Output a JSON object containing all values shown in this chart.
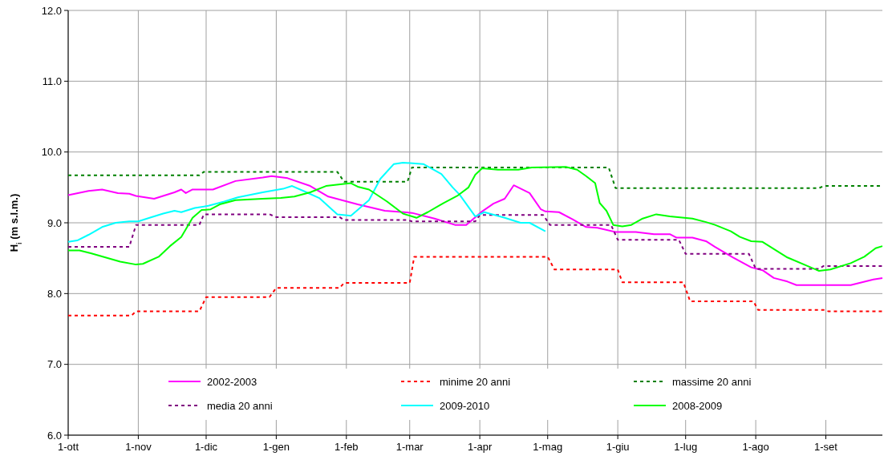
{
  "chart_data": {
    "type": "line",
    "ylabel": "H$_{i}$  (m s.l.m.)",
    "xlim": [
      "2002-10-01",
      "2003-09-26"
    ],
    "xticks": [
      {
        "value": "2002-10-01",
        "label": "1-ott"
      },
      {
        "value": "2002-11-01",
        "label": "1-nov"
      },
      {
        "value": "2002-12-01",
        "label": "1-dic"
      },
      {
        "value": "2003-01-01",
        "label": "1-gen"
      },
      {
        "value": "2003-02-01",
        "label": "1-feb"
      },
      {
        "value": "2003-03-01",
        "label": "1-mar"
      },
      {
        "value": "2003-04-01",
        "label": "1-apr"
      },
      {
        "value": "2003-05-01",
        "label": "1-mag"
      },
      {
        "value": "2003-06-01",
        "label": "1-giu"
      },
      {
        "value": "2003-07-01",
        "label": "1-lug"
      },
      {
        "value": "2003-08-01",
        "label": "1-ago"
      },
      {
        "value": "2003-09-01",
        "label": "1-set"
      }
    ],
    "ylim": [
      6,
      12
    ],
    "yticks": [
      {
        "value": 6,
        "label": "6.0"
      },
      {
        "value": 7,
        "label": "7.0"
      },
      {
        "value": 8,
        "label": "8.0"
      },
      {
        "value": 9,
        "label": "9.0"
      },
      {
        "value": 10,
        "label": "10.0"
      },
      {
        "value": 11,
        "label": "11.0"
      },
      {
        "value": 12,
        "label": "12.0"
      }
    ],
    "grid": true,
    "legend": "bottom",
    "marker": "none",
    "series": [
      {
        "name": "2002-2003",
        "color": "#ff00ff",
        "line_style": "solid",
        "x": [
          "2002-10-01",
          "2002-10-10",
          "2002-10-16",
          "2002-10-23",
          "2002-10-28",
          "2002-10-31",
          "2002-11-08",
          "2002-11-17",
          "2002-11-20",
          "2002-11-22",
          "2002-11-25",
          "2002-12-04",
          "2002-12-14",
          "2002-12-26",
          "2002-12-30",
          "2003-01-06",
          "2003-01-16",
          "2003-01-24",
          "2003-01-30",
          "2003-02-06",
          "2003-02-18",
          "2003-03-02",
          "2003-03-12",
          "2003-03-21",
          "2003-03-26",
          "2003-04-02",
          "2003-04-07",
          "2003-04-12",
          "2003-04-16",
          "2003-04-23",
          "2003-04-28",
          "2003-04-30",
          "2003-05-06",
          "2003-05-12",
          "2003-05-18",
          "2003-05-23",
          "2003-05-31",
          "2003-06-09",
          "2003-06-17",
          "2003-06-24",
          "2003-06-27",
          "2003-07-04",
          "2003-07-10",
          "2003-07-14",
          "2003-07-22",
          "2003-07-30",
          "2003-08-04",
          "2003-08-09",
          "2003-08-15",
          "2003-08-19",
          "2003-09-12",
          "2003-09-22",
          "2003-09-26"
        ],
        "values": [
          9.39,
          9.45,
          9.47,
          9.42,
          9.41,
          9.38,
          9.34,
          9.43,
          9.47,
          9.42,
          9.47,
          9.47,
          9.59,
          9.64,
          9.66,
          9.63,
          9.52,
          9.37,
          9.32,
          9.26,
          9.17,
          9.14,
          9.06,
          8.97,
          8.97,
          9.16,
          9.27,
          9.34,
          9.53,
          9.42,
          9.19,
          9.16,
          9.15,
          9.05,
          8.94,
          8.93,
          8.87,
          8.87,
          8.84,
          8.84,
          8.79,
          8.79,
          8.74,
          8.66,
          8.51,
          8.37,
          8.33,
          8.22,
          8.17,
          8.12,
          8.12,
          8.2,
          8.22
        ]
      },
      {
        "name": "minime 20 anni",
        "color": "#ff0000",
        "line_style": "dashed",
        "x": [
          "2002-10-01",
          "2002-10-29",
          "2002-10-31",
          "2002-11-28",
          "2002-12-01",
          "2002-12-29",
          "2003-01-01",
          "2003-01-29",
          "2003-01-31",
          "2003-03-01",
          "2003-03-03",
          "2003-05-01",
          "2003-05-04",
          "2003-06-01",
          "2003-06-03",
          "2003-06-30",
          "2003-07-03",
          "2003-07-31",
          "2003-08-02",
          "2003-08-31",
          "2003-09-02",
          "2003-09-26"
        ],
        "values": [
          7.69,
          7.69,
          7.75,
          7.75,
          7.95,
          7.95,
          8.08,
          8.08,
          8.15,
          8.15,
          8.52,
          8.52,
          8.34,
          8.34,
          8.16,
          8.16,
          7.89,
          7.89,
          7.77,
          7.77,
          7.75,
          7.75
        ]
      },
      {
        "name": "massime 20 anni",
        "color": "#008000",
        "line_style": "dashed",
        "x": [
          "2002-10-01",
          "2002-11-28",
          "2002-11-30",
          "2003-01-28",
          "2003-01-31",
          "2003-02-28",
          "2003-03-02",
          "2003-05-28",
          "2003-05-31",
          "2003-08-29",
          "2003-08-31",
          "2003-09-26"
        ],
        "values": [
          9.67,
          9.67,
          9.72,
          9.72,
          9.58,
          9.58,
          9.78,
          9.78,
          9.49,
          9.49,
          9.52,
          9.52
        ]
      },
      {
        "name": "media 20 anni",
        "color": "#800080",
        "line_style": "dashed",
        "x": [
          "2002-10-01",
          "2002-10-28",
          "2002-10-31",
          "2002-11-28",
          "2002-11-30",
          "2002-12-29",
          "2003-01-01",
          "2003-01-29",
          "2003-01-31",
          "2003-02-28",
          "2003-03-02",
          "2003-03-30",
          "2003-04-01",
          "2003-04-29",
          "2003-05-02",
          "2003-05-29",
          "2003-06-01",
          "2003-06-28",
          "2003-07-01",
          "2003-07-29",
          "2003-08-01",
          "2003-08-29",
          "2003-08-31",
          "2003-09-26"
        ],
        "values": [
          8.66,
          8.66,
          8.97,
          8.97,
          9.12,
          9.12,
          9.08,
          9.08,
          9.04,
          9.04,
          9.02,
          9.02,
          9.11,
          9.11,
          8.97,
          8.97,
          8.76,
          8.76,
          8.56,
          8.56,
          8.35,
          8.35,
          8.39,
          8.39
        ]
      },
      {
        "name": "2009-2010",
        "color": "#00ffff",
        "line_style": "solid",
        "x": [
          "2002-10-01",
          "2002-10-05",
          "2002-10-10",
          "2002-10-16",
          "2002-10-22",
          "2002-10-28",
          "2002-11-01",
          "2002-11-06",
          "2002-11-12",
          "2002-11-17",
          "2002-11-20",
          "2002-11-26",
          "2002-12-02",
          "2002-12-09",
          "2002-12-15",
          "2002-12-26",
          "2003-01-04",
          "2003-01-08",
          "2003-01-13",
          "2003-01-20",
          "2003-01-28",
          "2003-02-03",
          "2003-02-11",
          "2003-02-16",
          "2003-02-22",
          "2003-02-26",
          "2003-03-07",
          "2003-03-15",
          "2003-03-20",
          "2003-03-23",
          "2003-03-30",
          "2003-04-03",
          "2003-04-12",
          "2003-04-19",
          "2003-04-23",
          "2003-04-30"
        ],
        "values": [
          8.73,
          8.75,
          8.83,
          8.94,
          9.0,
          9.02,
          9.02,
          9.07,
          9.13,
          9.17,
          9.15,
          9.21,
          9.24,
          9.3,
          9.36,
          9.43,
          9.48,
          9.52,
          9.45,
          9.35,
          9.12,
          9.1,
          9.32,
          9.62,
          9.83,
          9.85,
          9.83,
          9.69,
          9.5,
          9.4,
          9.09,
          9.15,
          9.07,
          9.0,
          9.0,
          8.88
        ]
      },
      {
        "name": "2008-2009",
        "color": "#00ff00",
        "line_style": "solid",
        "x": [
          "2002-10-01",
          "2002-10-06",
          "2002-10-11",
          "2002-10-24",
          "2002-10-31",
          "2002-11-03",
          "2002-11-10",
          "2002-11-15",
          "2002-11-20",
          "2002-11-25",
          "2002-11-29",
          "2002-12-03",
          "2002-12-07",
          "2002-12-14",
          "2002-12-26",
          "2003-01-03",
          "2003-01-09",
          "2003-01-16",
          "2003-01-23",
          "2003-02-03",
          "2003-02-06",
          "2003-02-11",
          "2003-02-19",
          "2003-02-26",
          "2003-03-04",
          "2003-03-09",
          "2003-03-16",
          "2003-03-22",
          "2003-03-27",
          "2003-03-30",
          "2003-04-02",
          "2003-04-09",
          "2003-04-18",
          "2003-04-24",
          "2003-05-09",
          "2003-05-14",
          "2003-05-18",
          "2003-05-22",
          "2003-05-24",
          "2003-05-27",
          "2003-05-30",
          "2003-06-03",
          "2003-06-07",
          "2003-06-12",
          "2003-06-18",
          "2003-06-24",
          "2003-07-04",
          "2003-07-10",
          "2003-07-14",
          "2003-07-21",
          "2003-07-25",
          "2003-07-30",
          "2003-08-04",
          "2003-08-15",
          "2003-08-29",
          "2003-09-03",
          "2003-09-12",
          "2003-09-18",
          "2003-09-23",
          "2003-09-26"
        ],
        "values": [
          8.61,
          8.61,
          8.57,
          8.45,
          8.41,
          8.42,
          8.52,
          8.67,
          8.8,
          9.07,
          9.18,
          9.19,
          9.26,
          9.32,
          9.34,
          9.35,
          9.37,
          9.43,
          9.52,
          9.56,
          9.51,
          9.47,
          9.3,
          9.13,
          9.07,
          9.15,
          9.28,
          9.38,
          9.5,
          9.68,
          9.77,
          9.75,
          9.75,
          9.78,
          9.79,
          9.75,
          9.66,
          9.56,
          9.28,
          9.17,
          8.97,
          8.95,
          8.97,
          9.06,
          9.12,
          9.09,
          9.06,
          9.01,
          8.97,
          8.88,
          8.8,
          8.74,
          8.73,
          8.51,
          8.32,
          8.34,
          8.43,
          8.52,
          8.64,
          8.67
        ]
      }
    ]
  }
}
